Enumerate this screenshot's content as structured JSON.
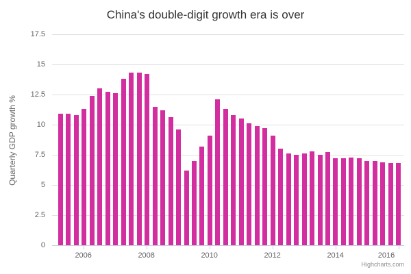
{
  "chart_data": {
    "type": "bar",
    "title": "China's double-digit growth era is over",
    "ylabel": "Quarterly GDP growth %",
    "xlabel": "",
    "x": [
      "2005 Q1",
      "2005 Q2",
      "2005 Q3",
      "2005 Q4",
      "2006 Q1",
      "2006 Q2",
      "2006 Q3",
      "2006 Q4",
      "2007 Q1",
      "2007 Q2",
      "2007 Q3",
      "2007 Q4",
      "2008 Q1",
      "2008 Q2",
      "2008 Q3",
      "2008 Q4",
      "2009 Q1",
      "2009 Q2",
      "2009 Q3",
      "2009 Q4",
      "2010 Q1",
      "2010 Q2",
      "2010 Q3",
      "2010 Q4",
      "2011 Q1",
      "2011 Q2",
      "2011 Q3",
      "2011 Q4",
      "2012 Q1",
      "2012 Q2",
      "2012 Q3",
      "2012 Q4",
      "2013 Q1",
      "2013 Q2",
      "2013 Q3",
      "2013 Q4",
      "2014 Q1",
      "2014 Q2",
      "2014 Q3",
      "2014 Q4",
      "2015 Q1",
      "2015 Q2",
      "2015 Q3",
      "2015 Q4"
    ],
    "values": [
      10.9,
      10.9,
      10.8,
      11.3,
      12.4,
      13.0,
      12.7,
      12.6,
      13.8,
      14.3,
      14.3,
      14.2,
      11.5,
      11.2,
      10.6,
      9.6,
      6.2,
      7.0,
      8.2,
      9.1,
      12.1,
      11.3,
      10.8,
      10.5,
      10.1,
      9.9,
      9.7,
      9.1,
      8.0,
      7.6,
      7.5,
      7.6,
      7.8,
      7.5,
      7.7,
      7.2,
      7.2,
      7.3,
      7.2,
      7.0,
      7.0,
      6.9,
      6.8,
      6.8
    ],
    "ylim": [
      0,
      17.5
    ],
    "y_ticks": [
      "0",
      "2.5",
      "5",
      "7.5",
      "10",
      "12.5",
      "15",
      "17.5"
    ],
    "x_ticks": [
      "2006",
      "2008",
      "2010",
      "2012",
      "2014",
      "2016"
    ],
    "grid": "horizontal",
    "legend": "none",
    "bar_color": "#d32e9f",
    "credits": "Highcharts.com"
  },
  "colors": {
    "background": "#ffffff",
    "title_text": "#333333",
    "axis_label_text": "#606060",
    "y_title_text": "#666666",
    "gridline": "#e0e0e0",
    "axis_line": "#c0d0e0",
    "credits_text": "#909090"
  }
}
